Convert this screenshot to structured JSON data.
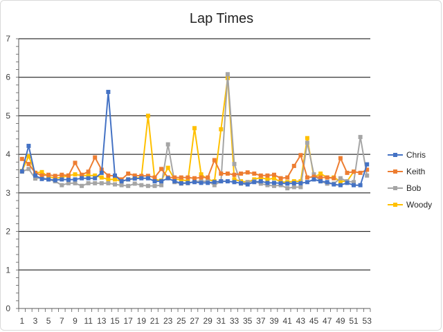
{
  "chart_data": {
    "type": "line",
    "title": "Lap Times",
    "xlabel": "",
    "ylabel": "",
    "ylim": [
      0,
      7
    ],
    "y_ticks": [
      0,
      1,
      2,
      3,
      4,
      5,
      6,
      7
    ],
    "x": [
      1,
      2,
      3,
      4,
      5,
      6,
      7,
      8,
      9,
      10,
      11,
      12,
      13,
      14,
      15,
      16,
      17,
      18,
      19,
      20,
      21,
      22,
      23,
      24,
      25,
      26,
      27,
      28,
      29,
      30,
      31,
      32,
      33,
      34,
      35,
      36,
      37,
      38,
      39,
      40,
      41,
      42,
      43,
      44,
      45,
      46,
      47,
      48,
      49,
      50,
      51,
      52,
      53
    ],
    "x_tick_labels": [
      1,
      3,
      5,
      7,
      9,
      11,
      13,
      15,
      17,
      19,
      21,
      23,
      25,
      27,
      29,
      31,
      33,
      35,
      37,
      39,
      41,
      43,
      45,
      47,
      49,
      51,
      53
    ],
    "grid": "horizontal",
    "legend_position": "right",
    "series": [
      {
        "name": "Chris",
        "color": "#4472C4",
        "values": [
          3.56,
          4.22,
          3.45,
          3.36,
          3.35,
          3.33,
          3.35,
          3.34,
          3.35,
          3.38,
          3.38,
          3.38,
          3.52,
          5.62,
          3.45,
          3.3,
          3.35,
          3.37,
          3.38,
          3.38,
          3.3,
          3.3,
          3.38,
          3.3,
          3.25,
          3.26,
          3.28,
          3.26,
          3.26,
          3.28,
          3.3,
          3.3,
          3.28,
          3.25,
          3.22,
          3.28,
          3.3,
          3.26,
          3.26,
          3.25,
          3.24,
          3.25,
          3.25,
          3.28,
          3.35,
          3.3,
          3.28,
          3.22,
          3.2,
          3.26,
          3.2,
          3.2,
          3.74
        ]
      },
      {
        "name": "Keith",
        "color": "#ED7D31",
        "values": [
          3.88,
          3.75,
          3.52,
          3.45,
          3.47,
          3.44,
          3.47,
          3.45,
          3.78,
          3.47,
          3.55,
          3.92,
          3.6,
          3.45,
          3.44,
          3.35,
          3.5,
          3.45,
          3.44,
          3.44,
          3.4,
          3.62,
          3.4,
          3.4,
          3.4,
          3.4,
          3.38,
          3.4,
          3.4,
          3.85,
          3.5,
          3.5,
          3.47,
          3.5,
          3.53,
          3.5,
          3.45,
          3.45,
          3.47,
          3.38,
          3.4,
          3.7,
          3.98,
          3.4,
          3.42,
          3.4,
          3.4,
          3.38,
          3.9,
          3.52,
          3.55,
          3.52,
          3.6
        ]
      },
      {
        "name": "Bob",
        "color": "#A5A5A5",
        "values": [
          3.55,
          3.62,
          3.37,
          3.4,
          3.35,
          3.3,
          3.2,
          3.25,
          3.25,
          3.18,
          3.25,
          3.25,
          3.25,
          3.25,
          3.22,
          3.2,
          3.18,
          3.24,
          3.2,
          3.18,
          3.18,
          3.2,
          4.26,
          3.28,
          3.24,
          3.25,
          3.3,
          3.3,
          3.3,
          3.2,
          3.3,
          6.08,
          3.75,
          3.24,
          3.28,
          3.3,
          3.24,
          3.2,
          3.18,
          3.2,
          3.12,
          3.15,
          3.15,
          4.3,
          3.48,
          3.3,
          3.24,
          3.24,
          3.38,
          3.3,
          3.28,
          4.45,
          3.45
        ]
      },
      {
        "name": "Woody",
        "color": "#FFC000",
        "values": [
          3.57,
          3.95,
          3.52,
          3.54,
          3.42,
          3.38,
          3.4,
          3.45,
          3.48,
          3.45,
          3.45,
          3.45,
          3.4,
          3.35,
          3.35,
          3.3,
          3.35,
          3.38,
          3.4,
          5.0,
          3.35,
          3.32,
          3.65,
          3.35,
          3.35,
          3.3,
          4.68,
          3.48,
          3.35,
          3.3,
          4.65,
          5.98,
          3.35,
          3.3,
          3.28,
          3.35,
          3.4,
          3.35,
          3.38,
          3.28,
          3.28,
          3.3,
          3.3,
          4.42,
          3.4,
          3.5,
          3.4,
          3.4,
          3.3,
          3.3,
          3.55,
          null,
          null
        ]
      }
    ]
  }
}
